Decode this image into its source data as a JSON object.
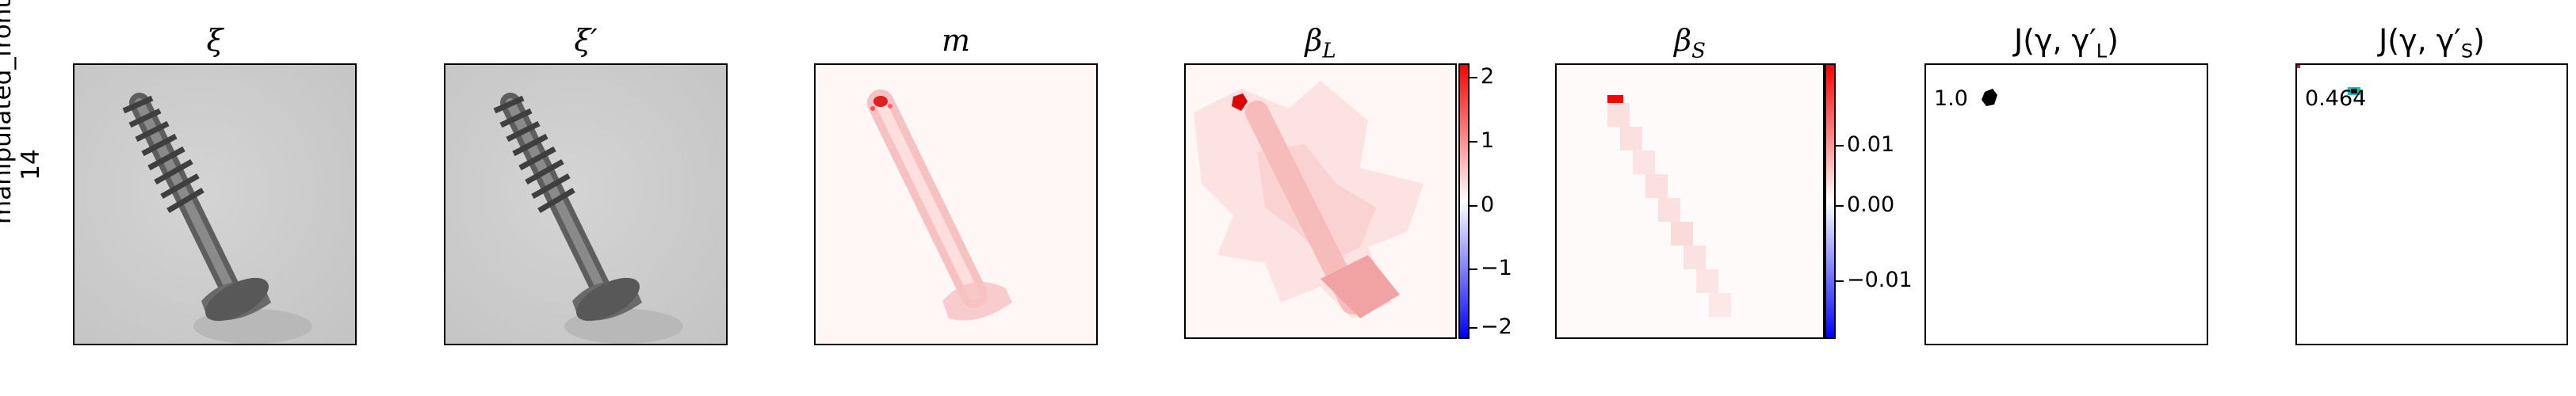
{
  "row": {
    "label_line1": "manipulated_front",
    "label_line2": "14"
  },
  "panels": [
    {
      "title": "ξ"
    },
    {
      "title": "ξ′"
    },
    {
      "title": "m"
    },
    {
      "title": "β_L",
      "title_main": "β",
      "title_sub": "L"
    },
    {
      "title": "β_S",
      "title_main": "β",
      "title_sub": "S"
    },
    {
      "title": "J(γ, γ′_L)",
      "title_prefix": "J(γ, γ′",
      "title_sub": "L",
      "title_suffix": ")"
    },
    {
      "title": "J(γ, γ′_S)",
      "title_prefix": "J(γ, γ′",
      "title_sub": "S",
      "title_suffix": ")"
    }
  ],
  "colorbar_L": {
    "ticks": [
      "2",
      "1",
      "0",
      "−1",
      "−2"
    ],
    "colors": {
      "top": "#ff0000",
      "mid": "#ffffff",
      "bottom": "#0000ff"
    }
  },
  "colorbar_S": {
    "ticks": [
      "0.01",
      "0.00",
      "−0.01"
    ],
    "colors": {
      "top": "#ff0000",
      "mid": "#ffffff",
      "bottom": "#0000ff"
    }
  },
  "annotations": {
    "jl_value": "1.0",
    "js_value": "0.464"
  },
  "colors": {
    "screw_gray": "#7a7a7a",
    "background_gray": "#cfcfcf",
    "heat_red": "#ff0000",
    "marker_cyan": "#00c8c8"
  }
}
